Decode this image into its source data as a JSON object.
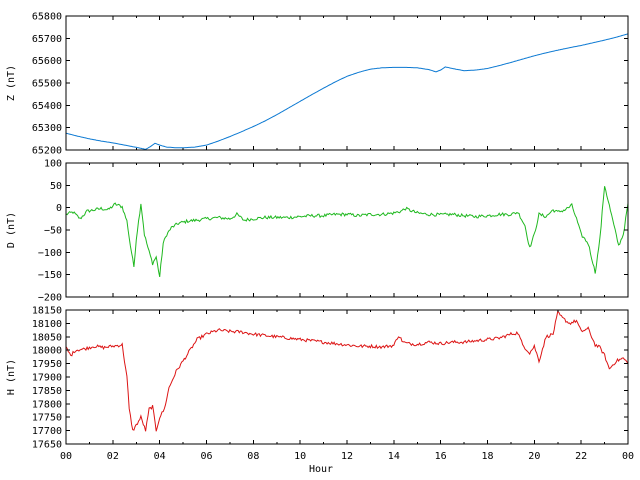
{
  "chart_data": [
    {
      "type": "line",
      "ylabel": "Z (nT)",
      "ylim": [
        65200,
        65800
      ],
      "yticks": [
        "65200",
        "65300",
        "65400",
        "65500",
        "65600",
        "65700",
        "65800"
      ],
      "xlim": [
        0,
        24
      ],
      "color": "#0a78d2",
      "series": [
        {
          "x": [
            0,
            0.5,
            1,
            1.5,
            2,
            2.5,
            3,
            3.4,
            3.6,
            3.8,
            4,
            4.3,
            4.7,
            5,
            5.5,
            6,
            6.5,
            7,
            7.5,
            8,
            8.5,
            9,
            9.5,
            10,
            10.5,
            11,
            11.5,
            12,
            12.5,
            13,
            13.5,
            14,
            14.5,
            15,
            15.5,
            15.8,
            16,
            16.2,
            16.5,
            17,
            17.5,
            18,
            18.5,
            19,
            19.5,
            20,
            20.5,
            21,
            21.5,
            22,
            22.5,
            23,
            23.5,
            24
          ],
          "values": [
            65275,
            65262,
            65250,
            65240,
            65232,
            65222,
            65212,
            65203,
            65215,
            65230,
            65222,
            65213,
            65210,
            65210,
            65213,
            65222,
            65240,
            65260,
            65282,
            65305,
            65330,
            65358,
            65388,
            65418,
            65448,
            65477,
            65505,
            65530,
            65548,
            65562,
            65568,
            65570,
            65570,
            65568,
            65560,
            65550,
            65558,
            65572,
            65565,
            65555,
            65558,
            65565,
            65578,
            65592,
            65607,
            65622,
            65635,
            65647,
            65658,
            65668,
            65680,
            65692,
            65705,
            65720
          ]
        }
      ]
    },
    {
      "type": "line",
      "ylabel": "D (nT)",
      "ylim": [
        -200,
        100
      ],
      "yticks": [
        "−200",
        "−150",
        "−100",
        "−50",
        "0",
        "50",
        "100"
      ],
      "xlim": [
        0,
        24
      ],
      "color": "#1fb81f",
      "series": [
        {
          "x": [
            0,
            0.3,
            0.6,
            0.9,
            1.2,
            1.5,
            1.8,
            2.1,
            2.4,
            2.6,
            2.75,
            2.9,
            3.0,
            3.2,
            3.35,
            3.5,
            3.7,
            3.85,
            4.0,
            4.15,
            4.3,
            4.5,
            4.8,
            5.2,
            5.6,
            6.0,
            6.5,
            7.0,
            7.3,
            7.6,
            8,
            8.5,
            9,
            9.5,
            10,
            10.5,
            11,
            11.5,
            12,
            12.5,
            13,
            13.5,
            14,
            14.3,
            14.5,
            15,
            15.5,
            16,
            16.5,
            17,
            17.5,
            18,
            18.5,
            19,
            19.3,
            19.6,
            19.8,
            20.0,
            20.2,
            20.5,
            20.8,
            21.0,
            21.3,
            21.6,
            21.8,
            22.0,
            22.3,
            22.6,
            22.8,
            23.0,
            23.2,
            23.4,
            23.6,
            23.8,
            24
          ],
          "values": [
            -15,
            -10,
            -25,
            -8,
            -5,
            -2,
            -5,
            8,
            2,
            -30,
            -85,
            -132,
            -70,
            10,
            -60,
            -90,
            -125,
            -110,
            -155,
            -80,
            -60,
            -45,
            -35,
            -30,
            -28,
            -25,
            -22,
            -25,
            -15,
            -28,
            -25,
            -22,
            -22,
            -22,
            -20,
            -18,
            -18,
            -15,
            -15,
            -18,
            -15,
            -15,
            -12,
            -8,
            -2,
            -12,
            -15,
            -16,
            -15,
            -18,
            -20,
            -18,
            -15,
            -15,
            -10,
            -40,
            -90,
            -60,
            -15,
            -20,
            -5,
            -10,
            -5,
            5,
            -25,
            -60,
            -80,
            -145,
            -70,
            50,
            5,
            -40,
            -85,
            -60,
            10
          ]
        }
      ]
    },
    {
      "type": "line",
      "ylabel": "H (nT)",
      "ylim": [
        17650,
        18150
      ],
      "yticks": [
        "17650",
        "17700",
        "17750",
        "17800",
        "17850",
        "17900",
        "17950",
        "18000",
        "18050",
        "18100",
        "18150"
      ],
      "xlim": [
        0,
        24
      ],
      "xlabel": "Hour",
      "xticks": [
        "00",
        "02",
        "04",
        "06",
        "08",
        "10",
        "12",
        "14",
        "16",
        "18",
        "20",
        "22",
        "00"
      ],
      "color": "#dc1414",
      "series": [
        {
          "x": [
            0,
            0.2,
            0.4,
            0.8,
            1.2,
            1.6,
            2.0,
            2.4,
            2.6,
            2.7,
            2.85,
            3.0,
            3.2,
            3.4,
            3.55,
            3.7,
            3.85,
            4.0,
            4.2,
            4.4,
            4.7,
            5.0,
            5.3,
            5.6,
            6.0,
            6.5,
            7.0,
            7.5,
            8,
            8.5,
            9,
            9.5,
            10,
            10.5,
            11,
            11.5,
            12,
            12.5,
            13,
            13.5,
            14,
            14.2,
            14.4,
            14.6,
            15,
            15.5,
            16,
            16.5,
            17,
            17.5,
            18,
            18.5,
            19,
            19.3,
            19.5,
            19.8,
            20.0,
            20.2,
            20.5,
            20.8,
            21.0,
            21.2,
            21.5,
            21.8,
            22.0,
            22.3,
            22.6,
            22.8,
            23.0,
            23.2,
            23.5,
            23.8,
            24
          ],
          "values": [
            18010,
            17980,
            18000,
            18005,
            18015,
            18010,
            18015,
            18020,
            17900,
            17780,
            17700,
            17720,
            17750,
            17700,
            17780,
            17790,
            17700,
            17750,
            17780,
            17860,
            17920,
            17960,
            18000,
            18040,
            18060,
            18075,
            18070,
            18068,
            18060,
            18055,
            18050,
            18045,
            18040,
            18035,
            18030,
            18025,
            18020,
            18015,
            18015,
            18012,
            18018,
            18055,
            18030,
            18025,
            18022,
            18030,
            18025,
            18030,
            18030,
            18035,
            18040,
            18045,
            18060,
            18065,
            18020,
            17990,
            18015,
            17960,
            18050,
            18060,
            18140,
            18120,
            18100,
            18110,
            18070,
            18080,
            18020,
            18010,
            17980,
            17930,
            17960,
            17970,
            17950
          ]
        }
      ]
    }
  ]
}
